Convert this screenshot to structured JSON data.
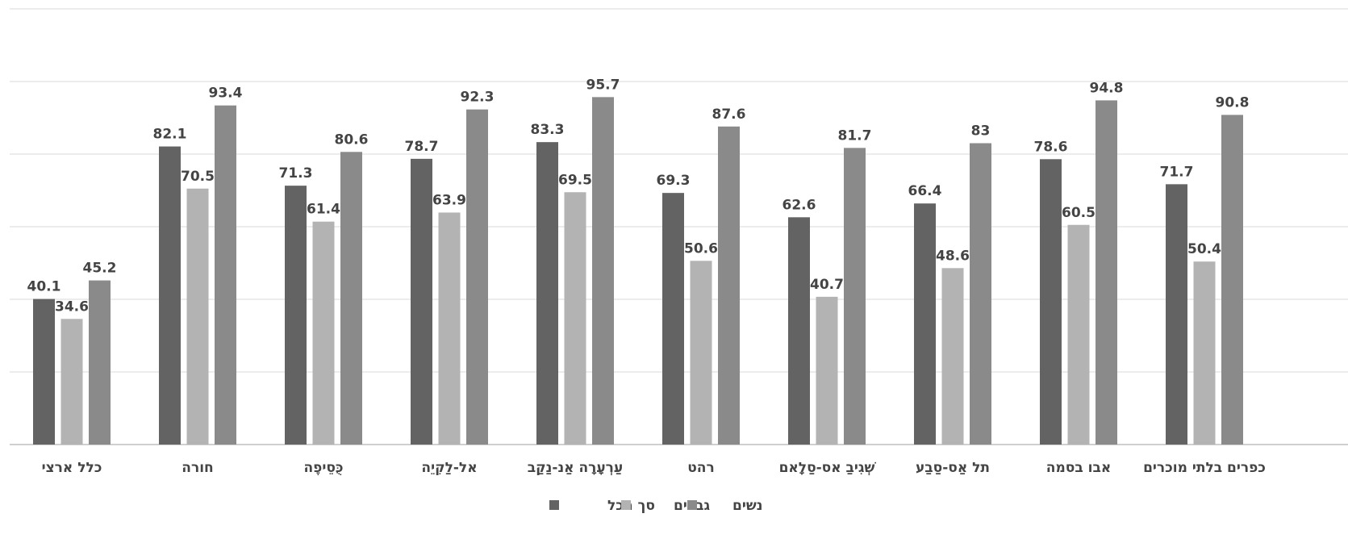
{
  "chart_data": {
    "type": "bar",
    "categories": [
      "כלל ארצי",
      "חורה",
      "כֻּסֵיפֶה",
      "אל-לַקִיֵה",
      "עַרְעָרָה אַנ-נַקַב",
      "רהט",
      "שְׁגִיבַ אס-סַלָאם",
      "תל אַס-סַבַע",
      "אבו בסמה",
      "כפרים בלתי מוכרים"
    ],
    "series": [
      {
        "name": "סך הכל",
        "color": "#636363",
        "values": [
          40.1,
          82.1,
          71.3,
          78.7,
          83.3,
          69.3,
          62.6,
          66.4,
          78.6,
          71.7
        ]
      },
      {
        "name": "גברים",
        "color": "#b3b3b3",
        "values": [
          34.6,
          70.5,
          61.4,
          63.9,
          69.5,
          50.6,
          40.7,
          48.6,
          60.5,
          50.4
        ]
      },
      {
        "name": "נשים",
        "color": "#8a8a8a",
        "values": [
          45.2,
          93.4,
          80.6,
          92.3,
          95.7,
          87.6,
          81.7,
          83,
          94.8,
          90.8
        ]
      }
    ],
    "ylim": [
      0,
      120
    ],
    "gridlines": true,
    "legend_position": "bottom"
  }
}
